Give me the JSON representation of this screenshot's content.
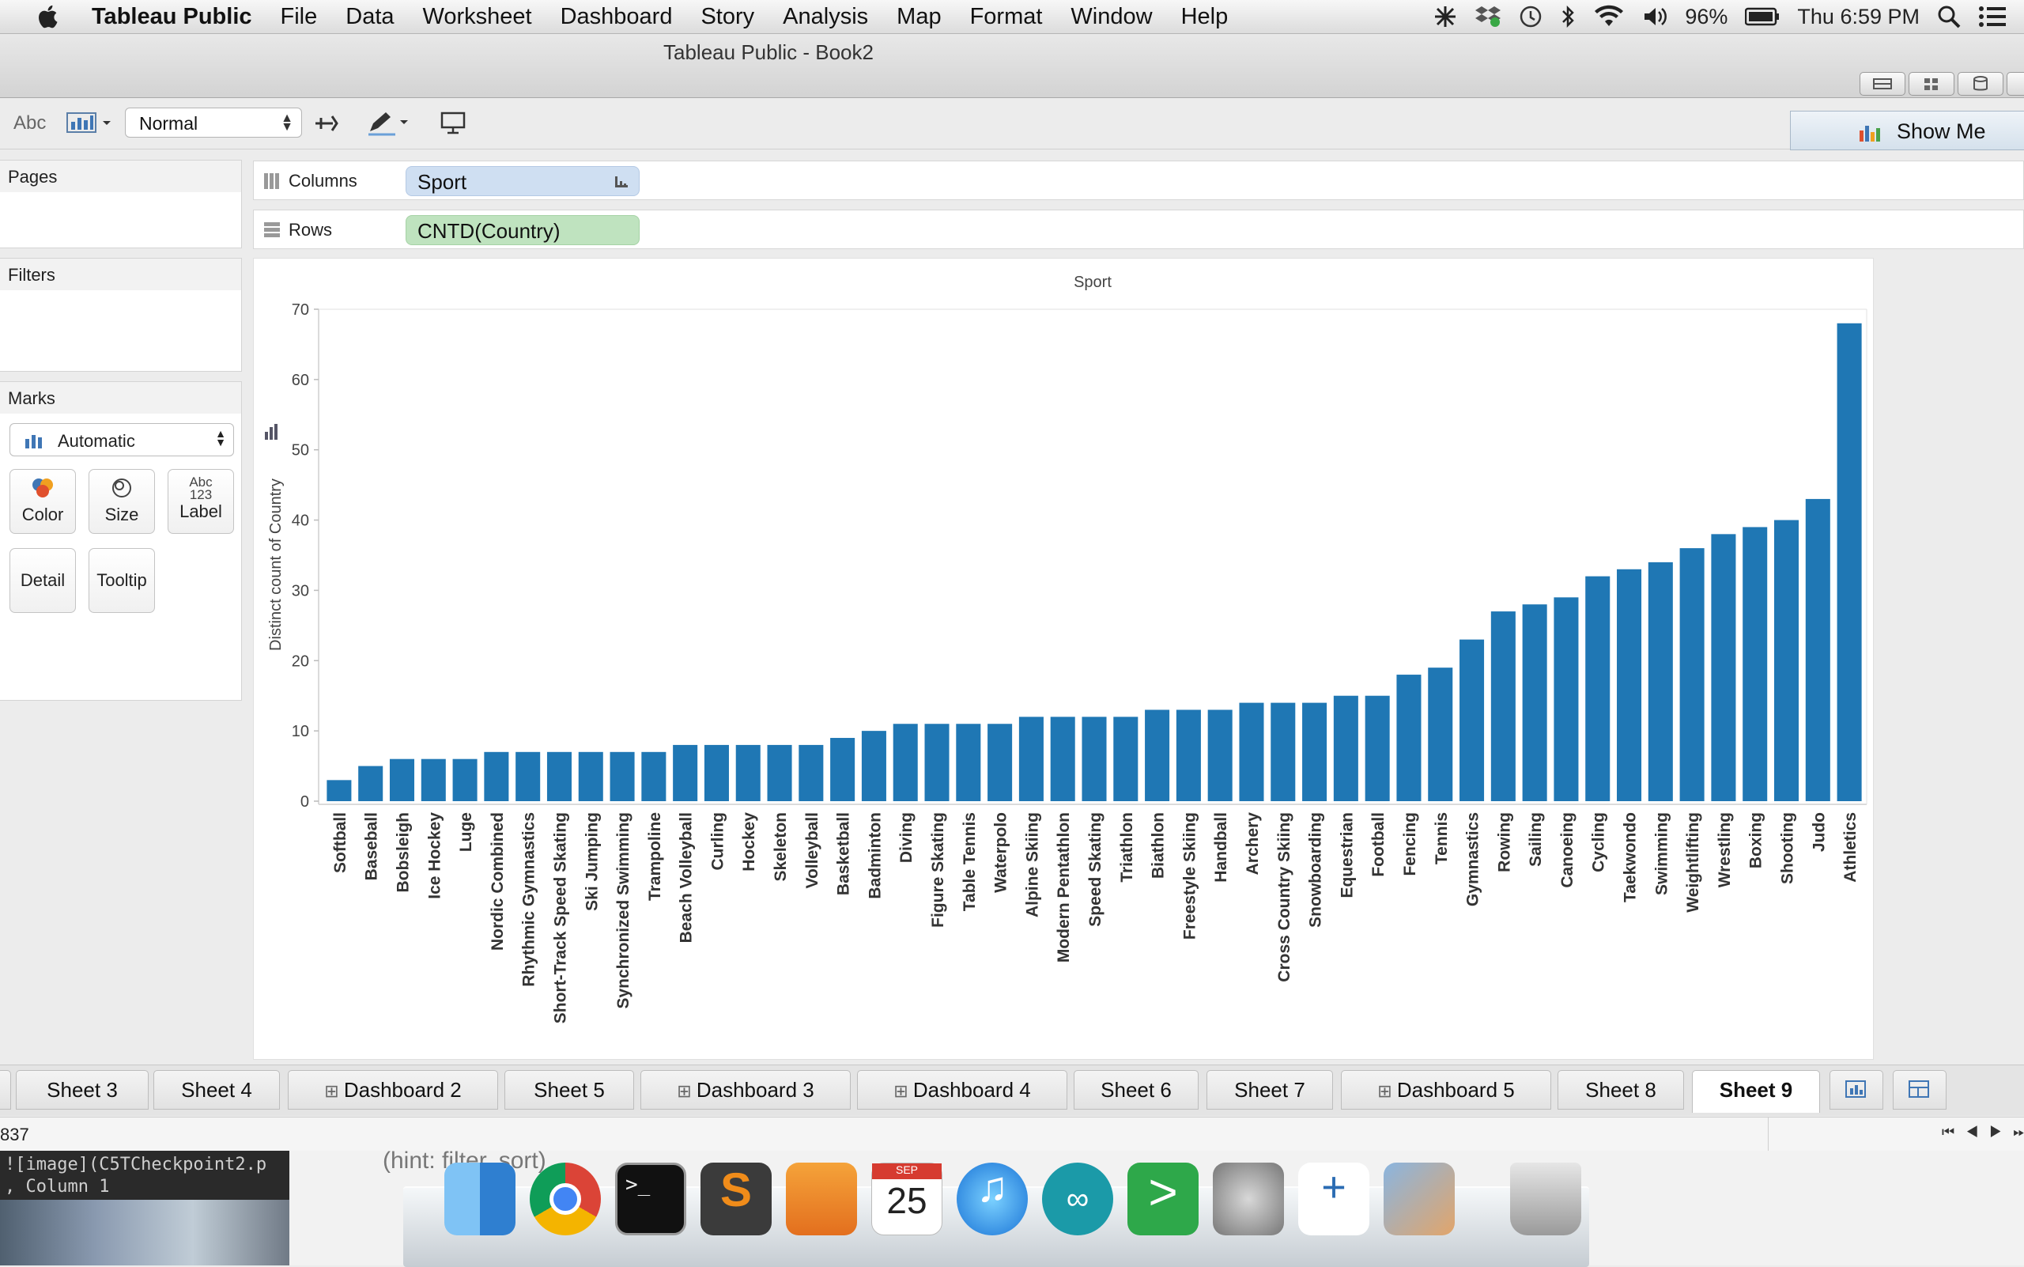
{
  "menubar": {
    "app_name": "Tableau Public",
    "items": [
      "File",
      "Data",
      "Worksheet",
      "Dashboard",
      "Story",
      "Analysis",
      "Map",
      "Format",
      "Window",
      "Help"
    ],
    "battery": "96%",
    "clock": "Thu 6:59 PM"
  },
  "window": {
    "title": "Tableau Public - Book2"
  },
  "toolbar": {
    "abc_label": "Abc",
    "fit_value": "Normal",
    "show_me": "Show Me"
  },
  "panels": {
    "pages": "Pages",
    "filters": "Filters",
    "marks": "Marks",
    "mark_type": "Automatic",
    "buttons": {
      "color": "Color",
      "size": "Size",
      "label": "Label",
      "detail": "Detail",
      "tooltip": "Tooltip",
      "label_icon_top": "Abc",
      "label_icon_bottom": "123"
    }
  },
  "shelves": {
    "columns_label": "Columns",
    "columns_pill": "Sport",
    "rows_label": "Rows",
    "rows_pill": "CNTD(Country)"
  },
  "chart_data": {
    "type": "bar",
    "title": "Sport",
    "ylabel": "Distinct count of Country",
    "xlabel": "",
    "ylim": [
      0,
      70
    ],
    "yticks": [
      0,
      10,
      20,
      30,
      40,
      50,
      60,
      70
    ],
    "grid": false,
    "bar_color": "#1f77b4",
    "categories": [
      "Softball",
      "Baseball",
      "Bobsleigh",
      "Ice Hockey",
      "Luge",
      "Nordic Combined",
      "Rhythmic Gymnastics",
      "Short-Track Speed Skating",
      "Ski Jumping",
      "Synchronized Swimming",
      "Trampoline",
      "Beach Volleyball",
      "Curling",
      "Hockey",
      "Skeleton",
      "Volleyball",
      "Basketball",
      "Badminton",
      "Diving",
      "Figure Skating",
      "Table Tennis",
      "Waterpolo",
      "Alpine Skiing",
      "Modern Pentathlon",
      "Speed Skating",
      "Triathlon",
      "Biathlon",
      "Freestyle Skiing",
      "Handball",
      "Archery",
      "Cross Country Skiing",
      "Snowboarding",
      "Equestrian",
      "Football",
      "Fencing",
      "Tennis",
      "Gymnastics",
      "Rowing",
      "Sailing",
      "Canoeing",
      "Cycling",
      "Taekwondo",
      "Swimming",
      "Weightlifting",
      "Wrestling",
      "Boxing",
      "Shooting",
      "Judo",
      "Athletics"
    ],
    "values": [
      3,
      5,
      6,
      6,
      6,
      7,
      7,
      7,
      7,
      7,
      7,
      8,
      8,
      8,
      8,
      8,
      9,
      10,
      11,
      11,
      11,
      11,
      12,
      12,
      12,
      12,
      13,
      13,
      13,
      14,
      14,
      14,
      15,
      15,
      18,
      19,
      23,
      27,
      28,
      29,
      32,
      33,
      34,
      36,
      38,
      39,
      40,
      43,
      68
    ]
  },
  "tabs": {
    "items": [
      "Sheet 3",
      "Sheet 4",
      "Dashboard 2",
      "Sheet 5",
      "Dashboard 3",
      "Dashboard 4",
      "Sheet 6",
      "Sheet 7",
      "Dashboard 5",
      "Sheet 8",
      "Sheet 9"
    ],
    "active": "Sheet 9"
  },
  "statusbar": {
    "count": "837"
  },
  "background": {
    "hint_text": "(hint: filter, sort)",
    "terminal_line1": "![image](C5TCheckpoint2.p",
    "terminal_line2": ", Column 1"
  },
  "dock": {
    "items": [
      "finder-icon",
      "chrome-icon",
      "terminal-icon",
      "sublime-text-icon",
      "pages-icon",
      "calendar-icon",
      "itunes-icon",
      "arduino-icon",
      "sublime-alt-icon",
      "system-preferences-icon",
      "tableau-icon",
      "iphoto-icon",
      "trash-icon"
    ],
    "calendar_month": "SEP",
    "calendar_day": "25"
  }
}
